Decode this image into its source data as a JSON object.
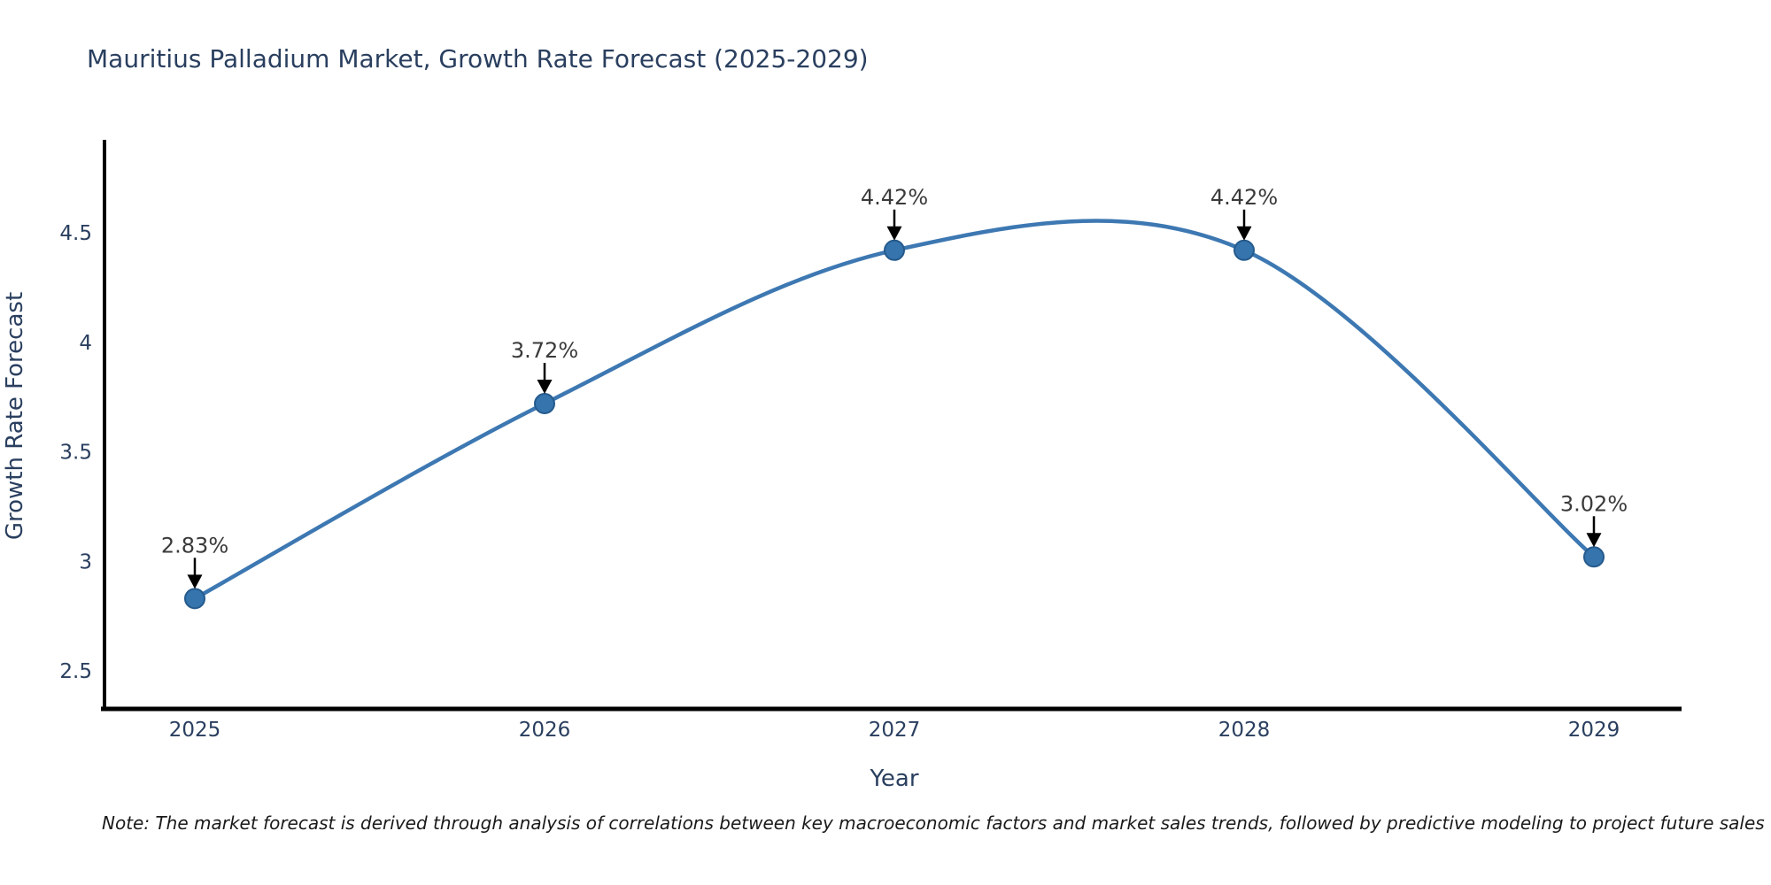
{
  "figure": {
    "title": "Mauritius Palladium Market, Growth Rate Forecast (2025-2029)",
    "note": "Note: The market forecast is derived through analysis of correlations between key macroeconomic factors and market sales trends, followed by predictive modeling to project future sales"
  },
  "chart_data": {
    "type": "line",
    "title": "Mauritius Palladium Market, Growth Rate Forecast (2025-2029)",
    "xlabel": "Year",
    "ylabel": "Growth Rate Forecast",
    "x": [
      2025,
      2026,
      2027,
      2028,
      2029
    ],
    "values": [
      2.83,
      3.72,
      4.42,
      4.42,
      3.02
    ],
    "annotations": [
      "2.83%",
      "3.72%",
      "4.42%",
      "4.42%",
      "3.02%"
    ],
    "xtick_labels": [
      "2025",
      "2026",
      "2027",
      "2028",
      "2029"
    ],
    "yticks": [
      2.5,
      3,
      3.5,
      4,
      4.5
    ],
    "ytick_labels": [
      "2.5",
      "3",
      "3.5",
      "4",
      "4.5"
    ],
    "ylim": [
      2.3,
      4.95
    ],
    "line_shape": "spline",
    "grid": false,
    "legend_position": "none",
    "colors": {
      "line": "#3d78b2",
      "marker_fill": "#3574ad",
      "marker_border": "#255a8c",
      "axis_line": "#000000",
      "arrow": "#000000",
      "tick_text": "#2a3f5f",
      "annotation_text": "#3a3a3a",
      "background": "#ffffff"
    }
  }
}
